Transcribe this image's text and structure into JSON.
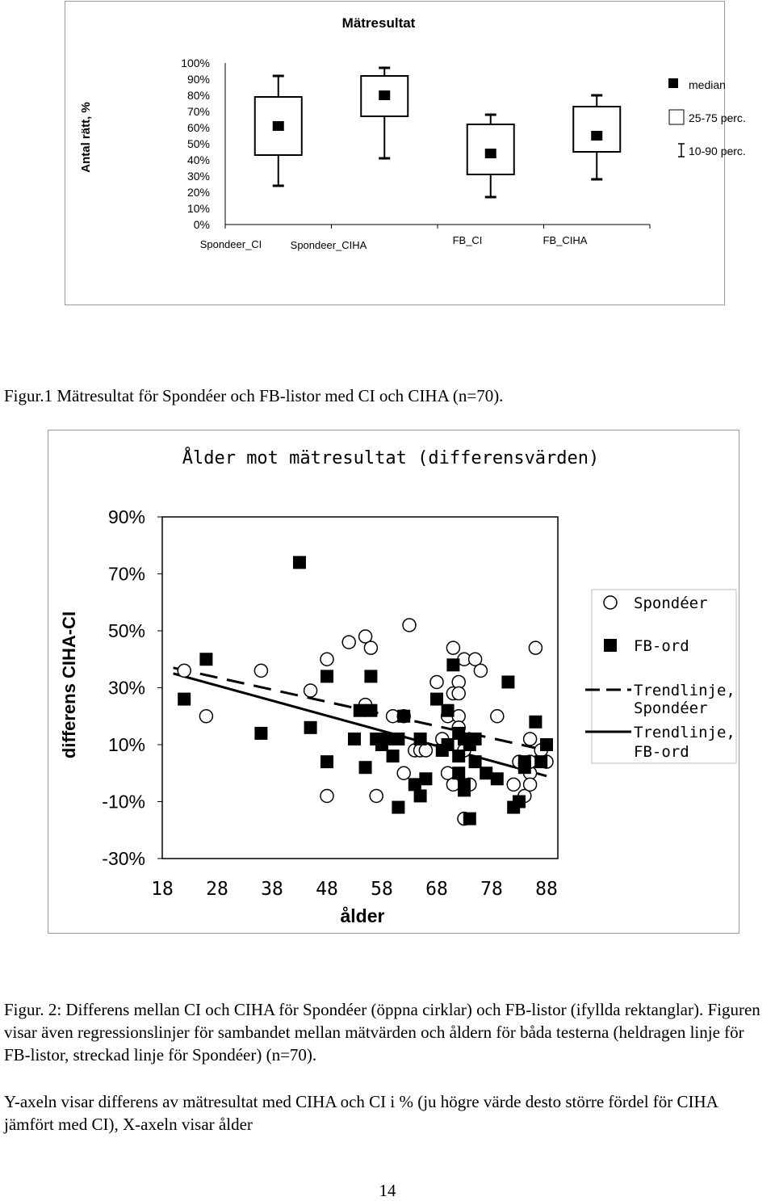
{
  "chart_data": [
    {
      "type": "boxplot",
      "title": "Mätresultat",
      "ylabel": "Antal rätt, %",
      "ylim": [
        0,
        100
      ],
      "yticks": [
        "100%",
        "90%",
        "80%",
        "70%",
        "60%",
        "50%",
        "40%",
        "30%",
        "20%",
        "10%",
        "0%"
      ],
      "categories": [
        "Spondeer_CI",
        "Spondeer_CIHA",
        "FB_CI",
        "FB_CIHA"
      ],
      "boxes": [
        {
          "median": 61,
          "q1": 43,
          "q3": 79,
          "p10": 24,
          "p90": 92
        },
        {
          "median": 80,
          "q1": 67,
          "q3": 92,
          "p10": 41,
          "p90": 97
        },
        {
          "median": 44,
          "q1": 31,
          "q3": 62,
          "p10": 17,
          "p90": 68
        },
        {
          "median": 55,
          "q1": 45,
          "q3": 73,
          "p10": 28,
          "p90": 80
        }
      ],
      "legend": [
        "median",
        "25-75 perc.",
        "10-90 perc."
      ],
      "legend_position": "right"
    },
    {
      "type": "scatter",
      "title": "Ålder mot mätresultat (differensvärden)",
      "xlabel": "ålder",
      "ylabel": "differens CIHA-CI",
      "xlim": [
        18,
        90
      ],
      "ylim": [
        -30,
        90
      ],
      "xticks": [
        "18",
        "28",
        "38",
        "48",
        "58",
        "68",
        "78",
        "88"
      ],
      "yticks": [
        "90%",
        "70%",
        "50%",
        "30%",
        "10%",
        "-10%",
        "-30%"
      ],
      "legend": [
        "Spondéer",
        "FB-ord",
        "Trendlinje, Spondéer",
        "Trendlinje, FB-ord"
      ],
      "legend_position": "right",
      "series": [
        {
          "name": "Spondéer",
          "marker": "circle",
          "points": [
            [
              22,
              36
            ],
            [
              26,
              20
            ],
            [
              36,
              36
            ],
            [
              45,
              29
            ],
            [
              48,
              40
            ],
            [
              48,
              -8
            ],
            [
              52,
              46
            ],
            [
              55,
              48
            ],
            [
              56,
              44
            ],
            [
              55,
              24
            ],
            [
              57,
              -8
            ],
            [
              60,
              20
            ],
            [
              62,
              20
            ],
            [
              62,
              0
            ],
            [
              63,
              52
            ],
            [
              64,
              8
            ],
            [
              65,
              8
            ],
            [
              66,
              8
            ],
            [
              68,
              32
            ],
            [
              69,
              12
            ],
            [
              70,
              20
            ],
            [
              70,
              0
            ],
            [
              71,
              -4
            ],
            [
              71,
              44
            ],
            [
              71,
              28
            ],
            [
              72,
              32
            ],
            [
              72,
              28
            ],
            [
              72,
              20
            ],
            [
              72,
              16
            ],
            [
              73,
              8
            ],
            [
              73,
              40
            ],
            [
              73,
              -16
            ],
            [
              74,
              -4
            ],
            [
              75,
              40
            ],
            [
              76,
              36
            ],
            [
              79,
              20
            ],
            [
              82,
              -4
            ],
            [
              83,
              4
            ],
            [
              84,
              -8
            ],
            [
              85,
              0
            ],
            [
              85,
              -4
            ],
            [
              85,
              4
            ],
            [
              85,
              12
            ],
            [
              86,
              44
            ],
            [
              87,
              8
            ],
            [
              88,
              4
            ]
          ]
        },
        {
          "name": "FB-ord",
          "marker": "square",
          "points": [
            [
              22,
              26
            ],
            [
              26,
              40
            ],
            [
              36,
              14
            ],
            [
              43,
              74
            ],
            [
              45,
              16
            ],
            [
              48,
              34
            ],
            [
              48,
              4
            ],
            [
              53,
              12
            ],
            [
              54,
              22
            ],
            [
              55,
              2
            ],
            [
              56,
              22
            ],
            [
              56,
              34
            ],
            [
              57,
              12
            ],
            [
              58,
              10
            ],
            [
              59,
              12
            ],
            [
              60,
              6
            ],
            [
              61,
              -12
            ],
            [
              61,
              12
            ],
            [
              62,
              20
            ],
            [
              64,
              -4
            ],
            [
              65,
              -8
            ],
            [
              65,
              12
            ],
            [
              66,
              -2
            ],
            [
              68,
              26
            ],
            [
              69,
              8
            ],
            [
              70,
              10
            ],
            [
              70,
              22
            ],
            [
              71,
              38
            ],
            [
              72,
              14
            ],
            [
              72,
              0
            ],
            [
              72,
              6
            ],
            [
              73,
              -6
            ],
            [
              73,
              -4
            ],
            [
              73,
              12
            ],
            [
              74,
              -16
            ],
            [
              74,
              10
            ],
            [
              75,
              4
            ],
            [
              75,
              12
            ],
            [
              77,
              0
            ],
            [
              79,
              -2
            ],
            [
              81,
              32
            ],
            [
              82,
              -12
            ],
            [
              83,
              -10
            ],
            [
              84,
              2
            ],
            [
              84,
              4
            ],
            [
              86,
              18
            ],
            [
              87,
              4
            ],
            [
              88,
              10
            ]
          ]
        }
      ],
      "trendlines": [
        {
          "name": "Trendlinje, Spondéer",
          "style": "dashed",
          "from": [
            20,
            37
          ],
          "to": [
            88,
            8
          ]
        },
        {
          "name": "Trendlinje, FB-ord",
          "style": "solid",
          "from": [
            20,
            35
          ],
          "to": [
            88,
            -1
          ]
        }
      ]
    }
  ],
  "captions": {
    "fig1": "Figur.1 Mätresultat för Spondéer och FB-listor med CI och CIHA (n=70).",
    "fig2": "Figur. 2: Differens mellan CI och CIHA för Spondéer (öppna cirklar) och FB-listor (ifyllda rektanglar). Figuren visar även regressionslinjer för sambandet mellan mätvärden och åldern för båda testerna (heldragen linje för FB-listor, streckad linje för Spondéer) (n=70).",
    "yaxis_note": "Y-axeln visar differens av mätresultat med CIHA och CI i % (ju högre värde desto större fördel för CIHA jämfört med CI), X-axeln visar ålder"
  },
  "page_number": "14"
}
